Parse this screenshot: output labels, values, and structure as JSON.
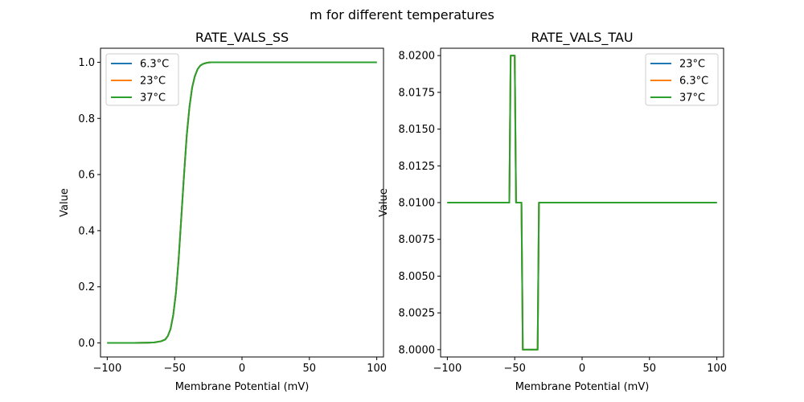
{
  "figure": {
    "suptitle": "m for different temperatures"
  },
  "chart_data": [
    {
      "type": "line",
      "title": "RATE_VALS_SS",
      "xlabel": "Membrane Potential (mV)",
      "ylabel": "Value",
      "xlim": [
        -105,
        105
      ],
      "ylim": [
        -0.05,
        1.05
      ],
      "xticks": [
        -100,
        -50,
        0,
        50,
        100
      ],
      "xtick_labels": [
        "−100",
        "−50",
        "0",
        "50",
        "100"
      ],
      "yticks": [
        0.0,
        0.2,
        0.4,
        0.6,
        0.8,
        1.0
      ],
      "ytick_labels": [
        "0.0",
        "0.2",
        "0.4",
        "0.6",
        "0.8",
        "1.0"
      ],
      "legend_position": "top-left",
      "series": [
        {
          "name": "6.3°C",
          "color": "#1f77b4",
          "x": [
            -100,
            -80,
            -70,
            -65,
            -60,
            -57,
            -55,
            -53,
            -51,
            -49,
            -47,
            -45,
            -43,
            -41,
            -39,
            -37,
            -35,
            -33,
            -31,
            -29,
            -27,
            -25,
            -23,
            -20,
            -15,
            -10,
            0,
            50,
            100
          ],
          "y": [
            0.0,
            0.0,
            0.001,
            0.002,
            0.006,
            0.012,
            0.025,
            0.05,
            0.1,
            0.18,
            0.3,
            0.45,
            0.6,
            0.74,
            0.84,
            0.91,
            0.95,
            0.975,
            0.988,
            0.994,
            0.997,
            0.999,
            1.0,
            1.0,
            1.0,
            1.0,
            1.0,
            1.0,
            1.0
          ]
        },
        {
          "name": "23°C",
          "color": "#ff7f0e",
          "x": [
            -100,
            -80,
            -70,
            -65,
            -60,
            -57,
            -55,
            -53,
            -51,
            -49,
            -47,
            -45,
            -43,
            -41,
            -39,
            -37,
            -35,
            -33,
            -31,
            -29,
            -27,
            -25,
            -23,
            -20,
            -15,
            -10,
            0,
            50,
            100
          ],
          "y": [
            0.0,
            0.0,
            0.001,
            0.002,
            0.006,
            0.012,
            0.025,
            0.05,
            0.1,
            0.18,
            0.3,
            0.45,
            0.6,
            0.74,
            0.84,
            0.91,
            0.95,
            0.975,
            0.988,
            0.994,
            0.997,
            0.999,
            1.0,
            1.0,
            1.0,
            1.0,
            1.0,
            1.0,
            1.0
          ]
        },
        {
          "name": "37°C",
          "color": "#2ca02c",
          "x": [
            -100,
            -80,
            -70,
            -65,
            -60,
            -57,
            -55,
            -53,
            -51,
            -49,
            -47,
            -45,
            -43,
            -41,
            -39,
            -37,
            -35,
            -33,
            -31,
            -29,
            -27,
            -25,
            -23,
            -20,
            -15,
            -10,
            0,
            50,
            100
          ],
          "y": [
            0.0,
            0.0,
            0.001,
            0.002,
            0.006,
            0.012,
            0.025,
            0.05,
            0.1,
            0.18,
            0.3,
            0.45,
            0.6,
            0.74,
            0.84,
            0.91,
            0.95,
            0.975,
            0.988,
            0.994,
            0.997,
            0.999,
            1.0,
            1.0,
            1.0,
            1.0,
            1.0,
            1.0,
            1.0
          ]
        }
      ]
    },
    {
      "type": "line",
      "title": "RATE_VALS_TAU",
      "xlabel": "Membrane Potential (mV)",
      "ylabel": "Value",
      "xlim": [
        -105,
        105
      ],
      "ylim": [
        7.9995,
        8.0205
      ],
      "xticks": [
        -100,
        -50,
        0,
        50,
        100
      ],
      "xtick_labels": [
        "−100",
        "−50",
        "0",
        "50",
        "100"
      ],
      "yticks": [
        8.0,
        8.0025,
        8.005,
        8.0075,
        8.01,
        8.0125,
        8.015,
        8.0175,
        8.02
      ],
      "ytick_labels": [
        "8.0000",
        "8.0025",
        "8.0050",
        "8.0075",
        "8.0100",
        "8.0125",
        "8.0150",
        "8.0175",
        "8.0200"
      ],
      "legend_position": "top-right",
      "series": [
        {
          "name": "23°C",
          "color": "#1f77b4",
          "x": [
            -100,
            -54,
            -53,
            -51,
            -50,
            -49,
            -48,
            -47,
            -46,
            -45,
            -44,
            -43,
            -42,
            -41,
            -40,
            -39,
            -38,
            -37,
            -36,
            -35,
            -34,
            -33,
            -32,
            -31,
            100
          ],
          "y": [
            8.01,
            8.01,
            8.02,
            8.02,
            8.02,
            8.01,
            8.01,
            8.01,
            8.01,
            8.01,
            8.0,
            8.0,
            8.0,
            8.0,
            8.0,
            8.0,
            8.0,
            8.0,
            8.0,
            8.0,
            8.0,
            8.0,
            8.01,
            8.01,
            8.01
          ]
        },
        {
          "name": "6.3°C",
          "color": "#ff7f0e",
          "x": [
            -100,
            -54,
            -53,
            -51,
            -50,
            -49,
            -48,
            -47,
            -46,
            -45,
            -44,
            -43,
            -42,
            -41,
            -40,
            -39,
            -38,
            -37,
            -36,
            -35,
            -34,
            -33,
            -32,
            -31,
            100
          ],
          "y": [
            8.01,
            8.01,
            8.02,
            8.02,
            8.02,
            8.01,
            8.01,
            8.01,
            8.01,
            8.01,
            8.0,
            8.0,
            8.0,
            8.0,
            8.0,
            8.0,
            8.0,
            8.0,
            8.0,
            8.0,
            8.0,
            8.0,
            8.01,
            8.01,
            8.01
          ]
        },
        {
          "name": "37°C",
          "color": "#2ca02c",
          "x": [
            -100,
            -54,
            -53,
            -51,
            -50,
            -49,
            -48,
            -47,
            -46,
            -45,
            -44,
            -43,
            -42,
            -41,
            -40,
            -39,
            -38,
            -37,
            -36,
            -35,
            -34,
            -33,
            -32,
            -31,
            100
          ],
          "y": [
            8.01,
            8.01,
            8.02,
            8.02,
            8.02,
            8.01,
            8.01,
            8.01,
            8.01,
            8.01,
            8.0,
            8.0,
            8.0,
            8.0,
            8.0,
            8.0,
            8.0,
            8.0,
            8.0,
            8.0,
            8.0,
            8.0,
            8.01,
            8.01,
            8.01
          ]
        }
      ]
    }
  ]
}
